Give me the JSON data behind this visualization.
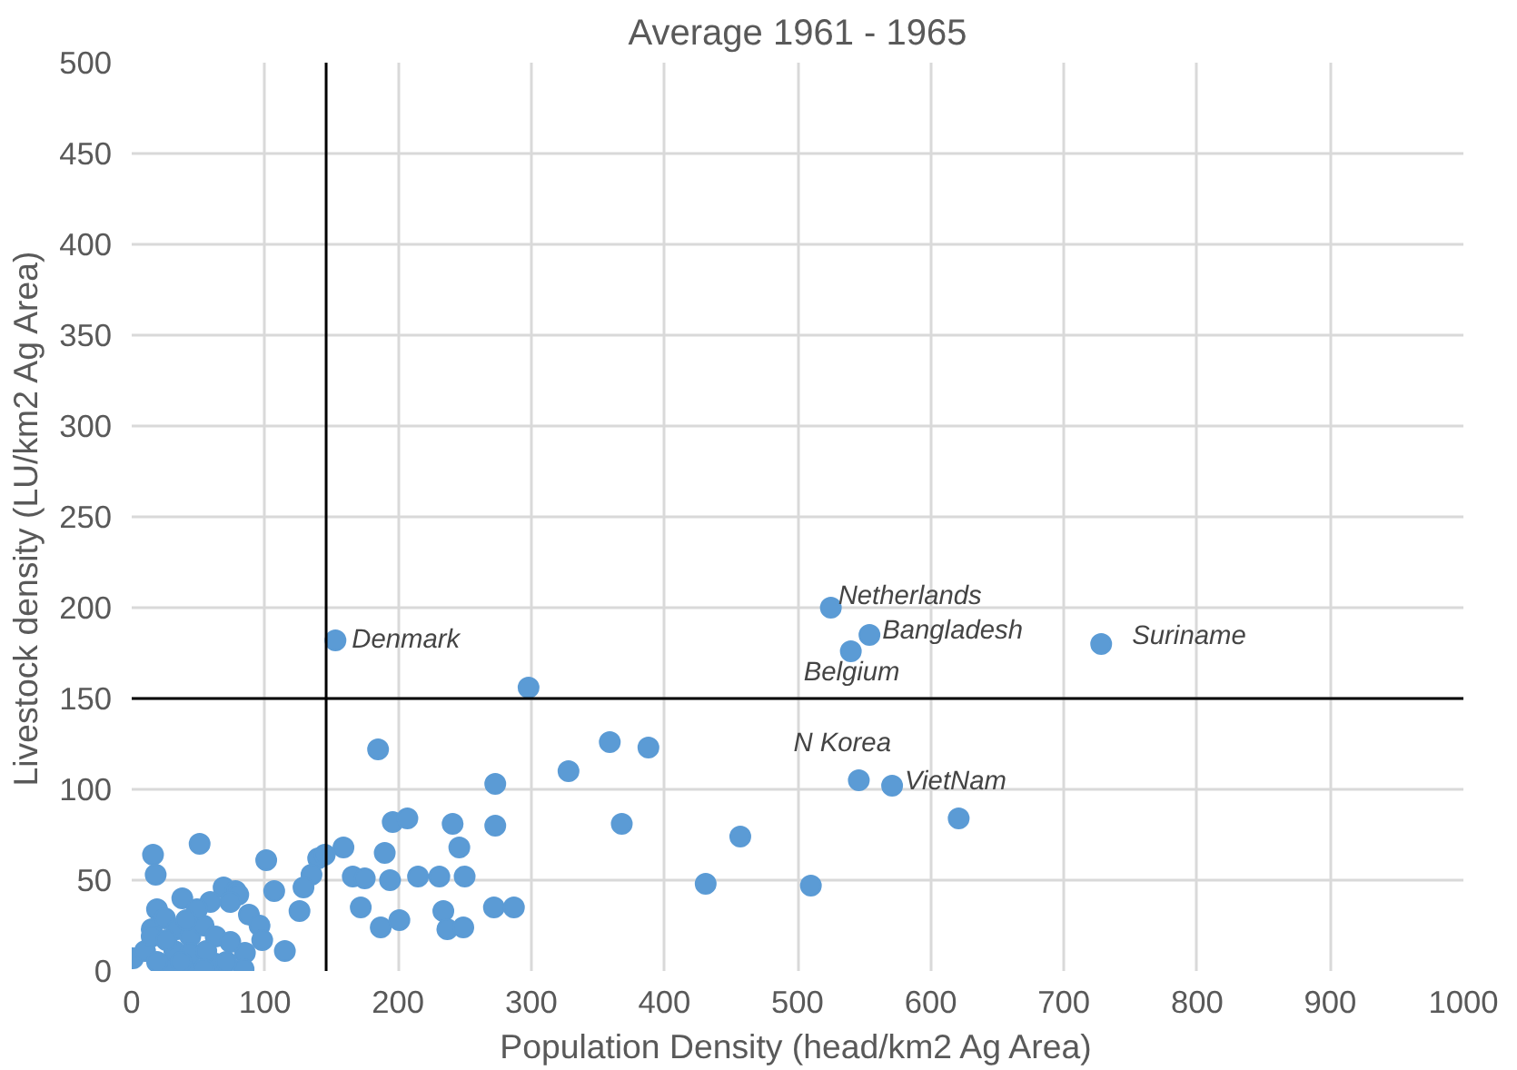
{
  "chart_data": {
    "type": "scatter",
    "title": "Average 1961 - 1965",
    "xlabel": "Population Density (head/km2 Ag Area)",
    "ylabel": "Livestock density (LU/km2 Ag Area)",
    "xlim": [
      0,
      1000
    ],
    "ylim": [
      0,
      500
    ],
    "xticks": [
      0,
      100,
      200,
      300,
      400,
      500,
      600,
      700,
      800,
      900,
      1000
    ],
    "yticks": [
      0,
      50,
      100,
      150,
      200,
      250,
      300,
      350,
      400,
      450,
      500
    ],
    "grid": true,
    "marker": "circle",
    "series": [
      {
        "color": "#5b9bd5",
        "x": [
          153,
          525,
          554,
          540,
          728,
          546,
          571,
          621,
          431,
          510,
          457,
          359,
          388,
          328,
          368,
          298,
          273,
          273,
          272,
          287,
          185,
          196,
          207,
          241,
          246,
          190,
          159,
          140,
          145,
          135,
          129,
          126,
          115,
          101,
          107,
          51,
          16,
          18,
          166,
          175,
          194,
          215,
          231,
          250,
          172,
          187,
          201,
          234,
          237,
          249,
          69,
          78,
          80,
          38,
          19,
          59,
          88,
          96,
          98,
          85,
          84,
          63,
          47,
          29,
          1,
          10,
          15,
          25,
          34,
          44,
          54,
          63,
          74,
          32,
          44,
          56,
          19,
          37,
          54,
          71,
          74,
          15,
          49,
          41,
          26
        ],
        "values": [
          182,
          200,
          185,
          176,
          180,
          105,
          102,
          84,
          48,
          47,
          74,
          126,
          123,
          110,
          81,
          156,
          103,
          80,
          35,
          35,
          122,
          82,
          84,
          81,
          68,
          65,
          68,
          62,
          64,
          53,
          46,
          33,
          11,
          61,
          44,
          70,
          64,
          53,
          52,
          51,
          50,
          52,
          52,
          52,
          35,
          24,
          28,
          33,
          23,
          24,
          46,
          44,
          42,
          40,
          34,
          38,
          31,
          25,
          17,
          10,
          1,
          4,
          1,
          1,
          7,
          11,
          23,
          29,
          23,
          19,
          25,
          19,
          16,
          11,
          10,
          11,
          5,
          5,
          1,
          5,
          38,
          19,
          34,
          28,
          17
        ]
      }
    ],
    "ref_lines": [
      {
        "axis": "x",
        "value": 146,
        "color": "#000000"
      },
      {
        "axis": "y",
        "value": 150,
        "color": "#000000"
      }
    ],
    "annotations": [
      {
        "text": "Denmark",
        "x": 153,
        "y": 182
      },
      {
        "text": "Netherlands",
        "x": 525,
        "y": 200
      },
      {
        "text": "Bangladesh",
        "x": 554,
        "y": 185
      },
      {
        "text": "Belgium",
        "x": 540,
        "y": 176
      },
      {
        "text": "Suriname",
        "x": 728,
        "y": 180
      },
      {
        "text": "N Korea",
        "x": 546,
        "y": 105
      },
      {
        "text": "VietNam",
        "x": 571,
        "y": 102
      }
    ]
  }
}
